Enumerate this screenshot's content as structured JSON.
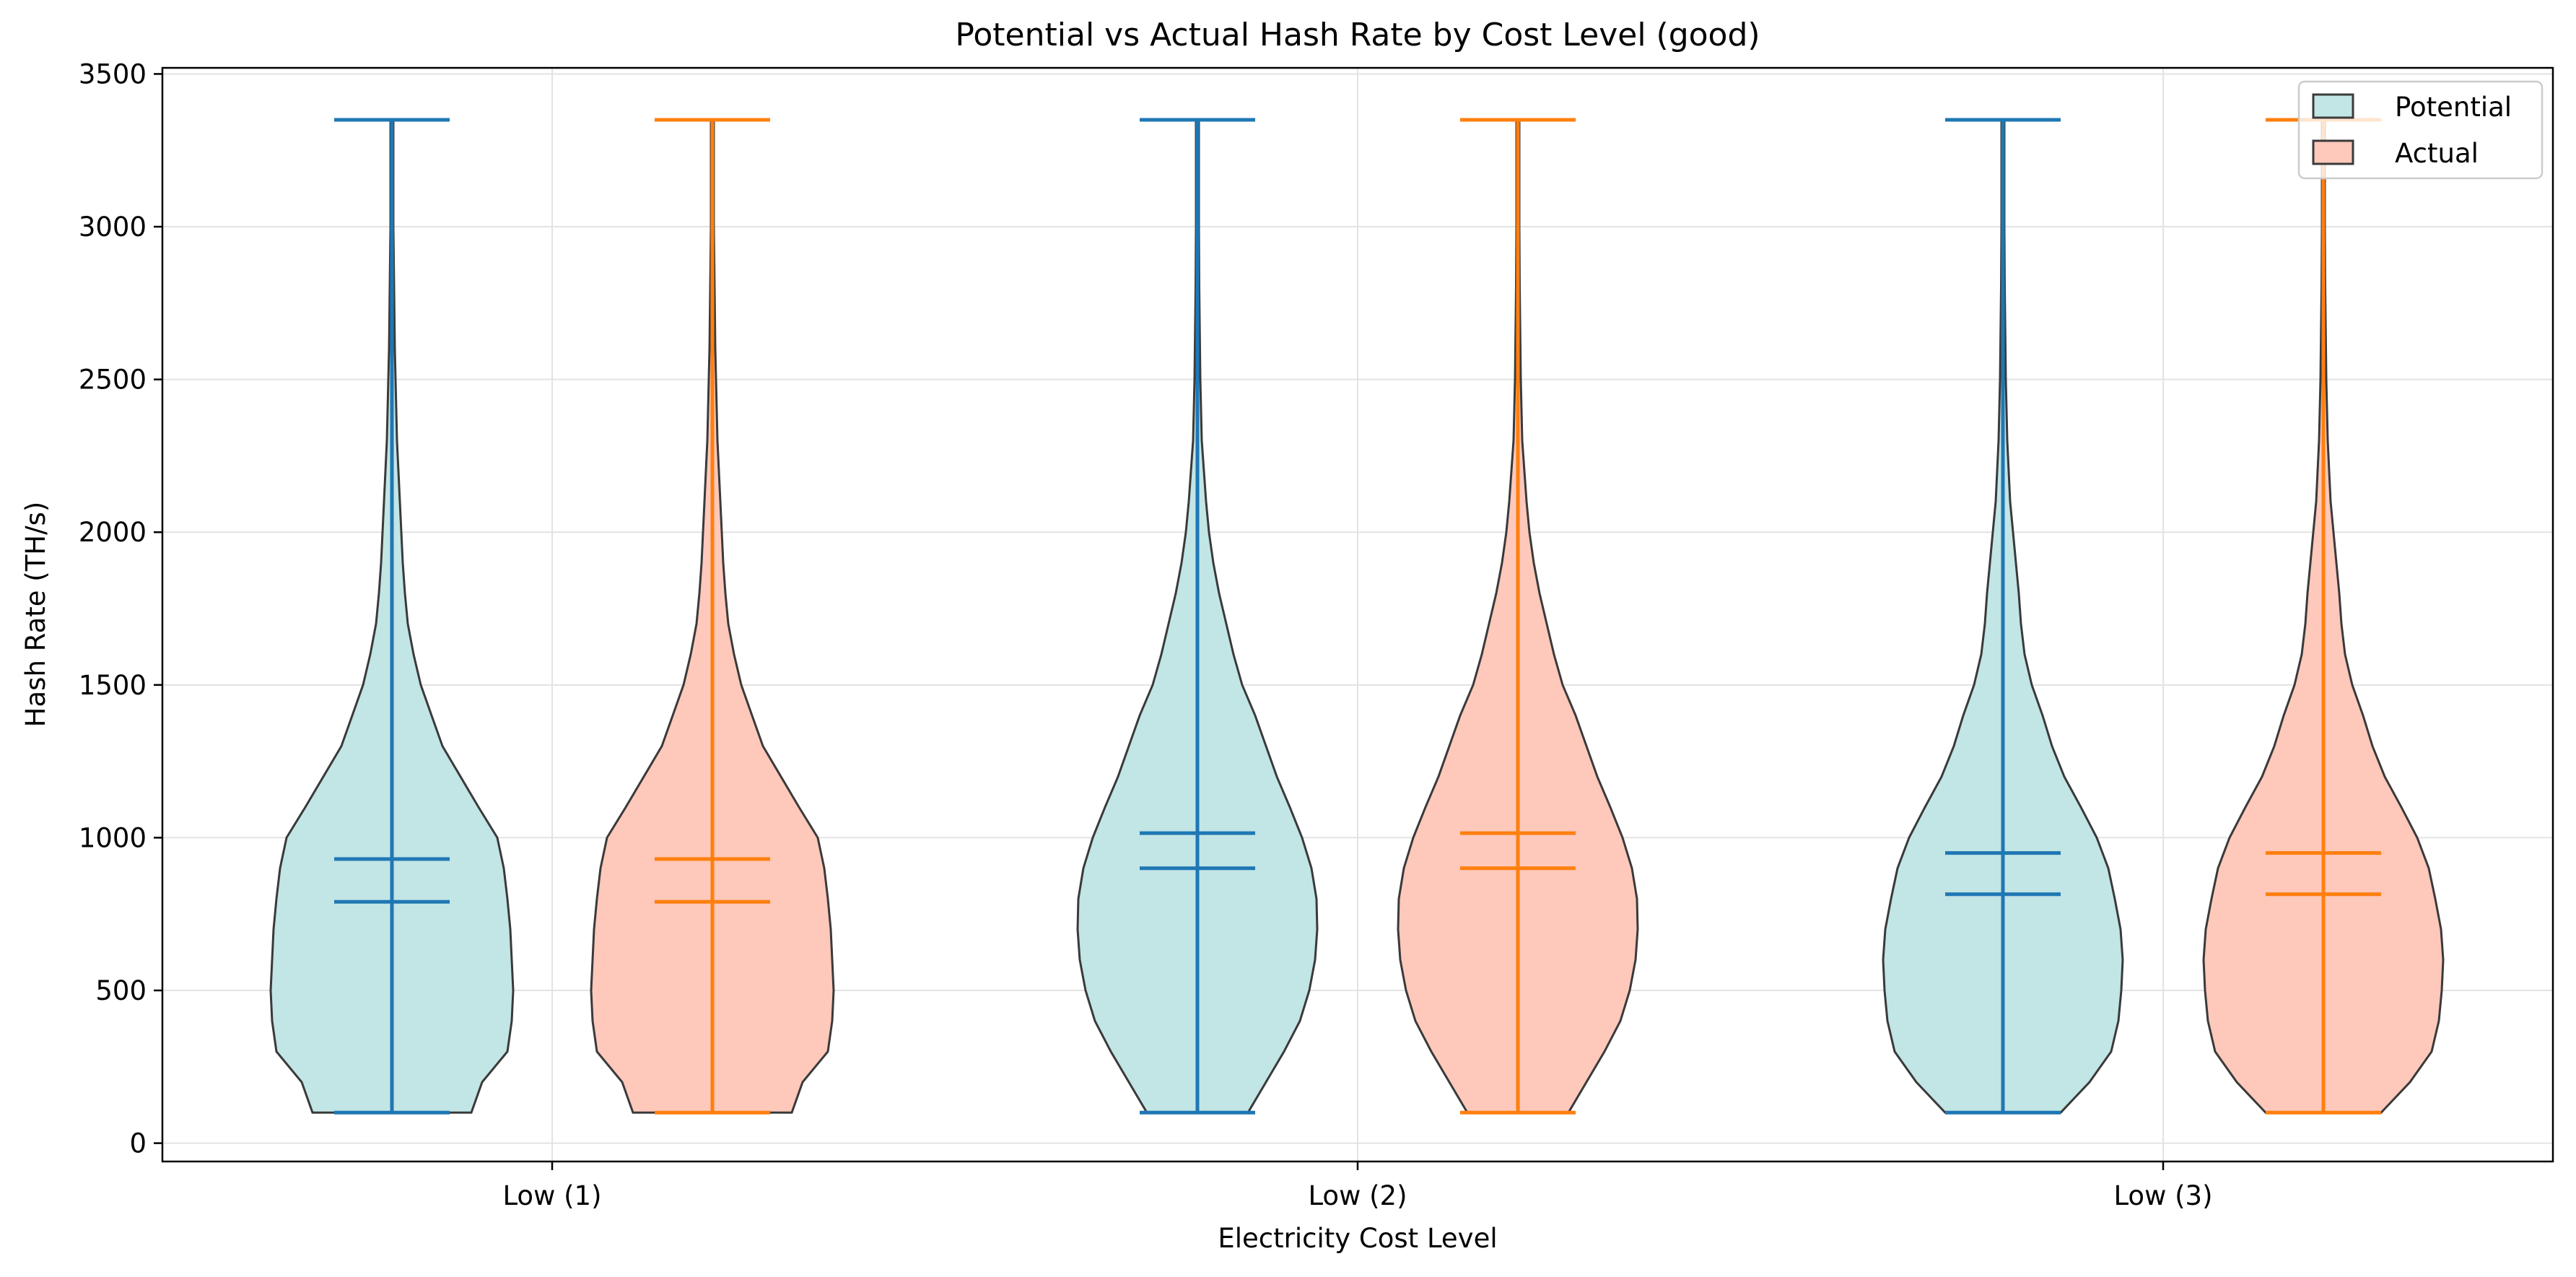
{
  "chart_data": {
    "type": "violin",
    "title": "Potential vs Actual Hash Rate by Cost Level (good)",
    "xlabel": "Electricity Cost Level",
    "ylabel": "Hash Rate (TH/s)",
    "categories": [
      "Low (1)",
      "Low (2)",
      "Low (3)"
    ],
    "ylim": [
      -60,
      3520
    ],
    "yticks": [
      0,
      500,
      1000,
      1500,
      2000,
      2500,
      3000,
      3500
    ],
    "grid": true,
    "legend_position": "top-right",
    "series": [
      {
        "name": "Potential",
        "fill_color": "#c2e5e5",
        "line_color": "#1f77b4",
        "stats": [
          {
            "min": 100,
            "max": 3350,
            "mean": 930,
            "median": 790
          },
          {
            "min": 100,
            "max": 3350,
            "mean": 1015,
            "median": 900
          },
          {
            "min": 100,
            "max": 3350,
            "mean": 950,
            "median": 815
          }
        ]
      },
      {
        "name": "Actual",
        "fill_color": "#fec8bb",
        "line_color": "#ff7f0e",
        "stats": [
          {
            "min": 100,
            "max": 3350,
            "mean": 930,
            "median": 790
          },
          {
            "min": 100,
            "max": 3350,
            "mean": 1015,
            "median": 900
          },
          {
            "min": 100,
            "max": 3350,
            "mean": 950,
            "median": 815
          }
        ]
      }
    ],
    "density_profiles": [
      [
        [
          100,
          110
        ],
        [
          200,
          125
        ],
        [
          300,
          160
        ],
        [
          400,
          166
        ],
        [
          500,
          168
        ],
        [
          600,
          166
        ],
        [
          700,
          164
        ],
        [
          800,
          160
        ],
        [
          900,
          155
        ],
        [
          1000,
          146
        ],
        [
          1100,
          120
        ],
        [
          1200,
          95
        ],
        [
          1300,
          70
        ],
        [
          1400,
          55
        ],
        [
          1500,
          40
        ],
        [
          1600,
          30
        ],
        [
          1700,
          22
        ],
        [
          1800,
          18
        ],
        [
          1900,
          15
        ],
        [
          2000,
          13
        ],
        [
          2100,
          11
        ],
        [
          2200,
          9
        ],
        [
          2300,
          7
        ],
        [
          2400,
          6
        ],
        [
          2500,
          5
        ],
        [
          2600,
          4
        ],
        [
          2700,
          3.5
        ],
        [
          2800,
          3
        ],
        [
          2900,
          2.5
        ],
        [
          3000,
          2
        ],
        [
          3200,
          2
        ],
        [
          3350,
          2
        ]
      ],
      [
        [
          100,
          70
        ],
        [
          200,
          95
        ],
        [
          300,
          120
        ],
        [
          400,
          142
        ],
        [
          500,
          155
        ],
        [
          600,
          163
        ],
        [
          700,
          166
        ],
        [
          800,
          165
        ],
        [
          900,
          158
        ],
        [
          1000,
          145
        ],
        [
          1100,
          128
        ],
        [
          1200,
          110
        ],
        [
          1300,
          95
        ],
        [
          1400,
          80
        ],
        [
          1500,
          62
        ],
        [
          1600,
          50
        ],
        [
          1700,
          40
        ],
        [
          1800,
          30
        ],
        [
          1900,
          22
        ],
        [
          2000,
          16
        ],
        [
          2100,
          12
        ],
        [
          2200,
          9
        ],
        [
          2300,
          6
        ],
        [
          2400,
          5
        ],
        [
          2500,
          4
        ],
        [
          2600,
          3.5
        ],
        [
          2700,
          3
        ],
        [
          2800,
          2.5
        ],
        [
          3000,
          2
        ],
        [
          3200,
          2
        ],
        [
          3350,
          2
        ]
      ],
      [
        [
          100,
          80
        ],
        [
          200,
          120
        ],
        [
          300,
          150
        ],
        [
          400,
          160
        ],
        [
          500,
          164
        ],
        [
          600,
          166
        ],
        [
          700,
          163
        ],
        [
          800,
          155
        ],
        [
          900,
          146
        ],
        [
          1000,
          130
        ],
        [
          1100,
          108
        ],
        [
          1200,
          85
        ],
        [
          1300,
          68
        ],
        [
          1400,
          55
        ],
        [
          1500,
          40
        ],
        [
          1600,
          30
        ],
        [
          1700,
          25
        ],
        [
          1800,
          22
        ],
        [
          1900,
          18
        ],
        [
          2000,
          14
        ],
        [
          2100,
          10
        ],
        [
          2200,
          8
        ],
        [
          2300,
          6
        ],
        [
          2400,
          5
        ],
        [
          2500,
          4
        ],
        [
          2600,
          3.5
        ],
        [
          2700,
          3
        ],
        [
          2800,
          2.5
        ],
        [
          3000,
          2
        ],
        [
          3200,
          2
        ],
        [
          3350,
          2
        ]
      ]
    ]
  }
}
